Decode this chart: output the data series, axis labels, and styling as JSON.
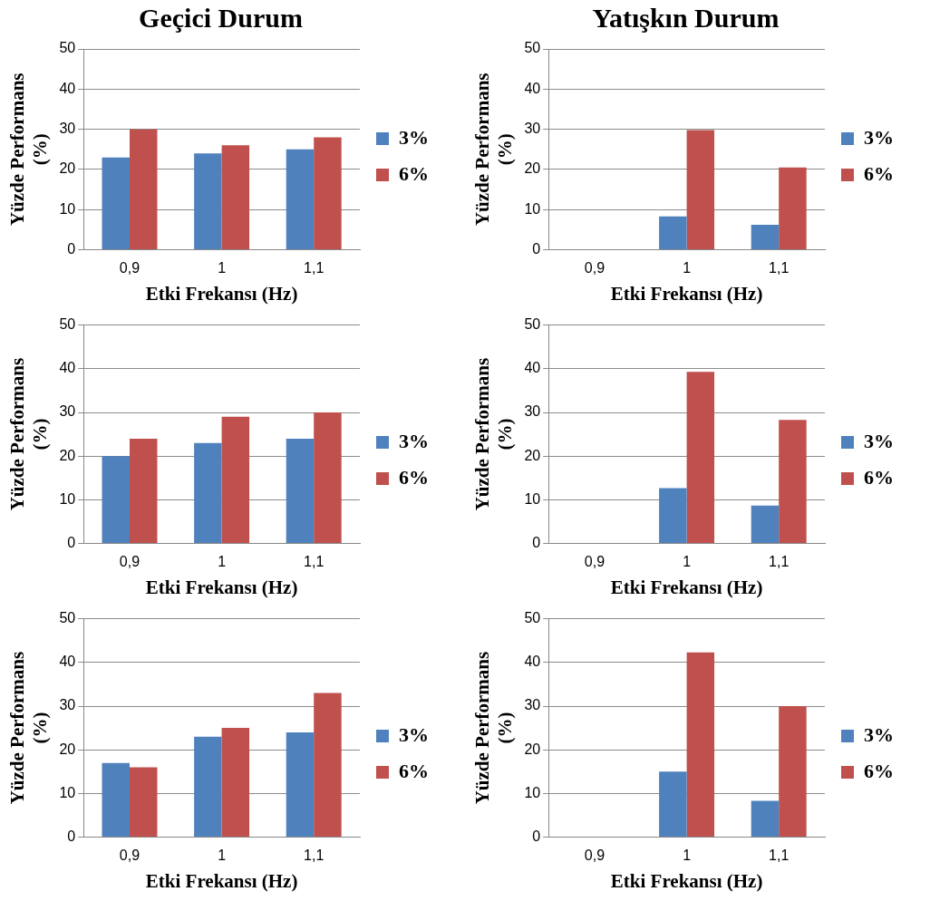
{
  "chart_data": [
    {
      "type": "bar",
      "title": "Geçici Durum",
      "xlabel": "Etki Frekansı (Hz)",
      "ylabel": "Yüzde Performans (%)",
      "categories": [
        "0,9",
        "1",
        "1,1"
      ],
      "ylim": [
        0,
        50
      ],
      "yticks": [
        0,
        10,
        20,
        30,
        40,
        50
      ],
      "grid": "y",
      "legend": "right",
      "series": [
        {
          "name": "3%",
          "color": "#4f81bd",
          "values": [
            23,
            24,
            25
          ]
        },
        {
          "name": "6%",
          "color": "#c0504d",
          "values": [
            30,
            26,
            28
          ]
        }
      ]
    },
    {
      "type": "bar",
      "title": "Yatışkın Durum",
      "xlabel": "Etki Frekansı (Hz)",
      "ylabel": "Yüzde Performans (%)",
      "categories": [
        "0,9",
        "1",
        "1,1"
      ],
      "ylim": [
        0,
        50
      ],
      "yticks": [
        0,
        10,
        20,
        30,
        40,
        50
      ],
      "grid": "y",
      "legend": "right",
      "series": [
        {
          "name": "3%",
          "color": "#4f81bd",
          "values": [
            0,
            8.3,
            6.2
          ]
        },
        {
          "name": "6%",
          "color": "#c0504d",
          "values": [
            0,
            29.8,
            20.5
          ]
        }
      ]
    },
    {
      "type": "bar",
      "xlabel": "Etki Frekansı (Hz)",
      "ylabel": "Yüzde Performans (%)",
      "categories": [
        "0,9",
        "1",
        "1,1"
      ],
      "ylim": [
        0,
        50
      ],
      "yticks": [
        0,
        10,
        20,
        30,
        40,
        50
      ],
      "grid": "y",
      "legend": "right",
      "series": [
        {
          "name": "3%",
          "color": "#4f81bd",
          "values": [
            20,
            23,
            24
          ]
        },
        {
          "name": "6%",
          "color": "#c0504d",
          "values": [
            24,
            29,
            30
          ]
        }
      ]
    },
    {
      "type": "bar",
      "xlabel": "Etki Frekansı (Hz)",
      "ylabel": "Yüzde Performans (%)",
      "categories": [
        "0,9",
        "1",
        "1,1"
      ],
      "ylim": [
        0,
        50
      ],
      "yticks": [
        0,
        10,
        20,
        30,
        40,
        50
      ],
      "grid": "y",
      "legend": "right",
      "series": [
        {
          "name": "3%",
          "color": "#4f81bd",
          "values": [
            0,
            12.7,
            8.7
          ]
        },
        {
          "name": "6%",
          "color": "#c0504d",
          "values": [
            0,
            39.3,
            28.3
          ]
        }
      ]
    },
    {
      "type": "bar",
      "xlabel": "Etki Frekansı (Hz)",
      "ylabel": "Yüzde Performans (%)",
      "categories": [
        "0,9",
        "1",
        "1,1"
      ],
      "ylim": [
        0,
        50
      ],
      "yticks": [
        0,
        10,
        20,
        30,
        40,
        50
      ],
      "grid": "y",
      "legend": "right",
      "series": [
        {
          "name": "3%",
          "color": "#4f81bd",
          "values": [
            17,
            23,
            24
          ]
        },
        {
          "name": "6%",
          "color": "#c0504d",
          "values": [
            16,
            25,
            33
          ]
        }
      ]
    },
    {
      "type": "bar",
      "xlabel": "Etki Frekansı (Hz)",
      "ylabel": "Yüzde Performans (%)",
      "categories": [
        "0,9",
        "1",
        "1,1"
      ],
      "ylim": [
        0,
        50
      ],
      "yticks": [
        0,
        10,
        20,
        30,
        40,
        50
      ],
      "grid": "y",
      "legend": "right",
      "series": [
        {
          "name": "3%",
          "color": "#4f81bd",
          "values": [
            0,
            15,
            8.3
          ]
        },
        {
          "name": "6%",
          "color": "#c0504d",
          "values": [
            0,
            42.3,
            30
          ]
        }
      ]
    }
  ]
}
